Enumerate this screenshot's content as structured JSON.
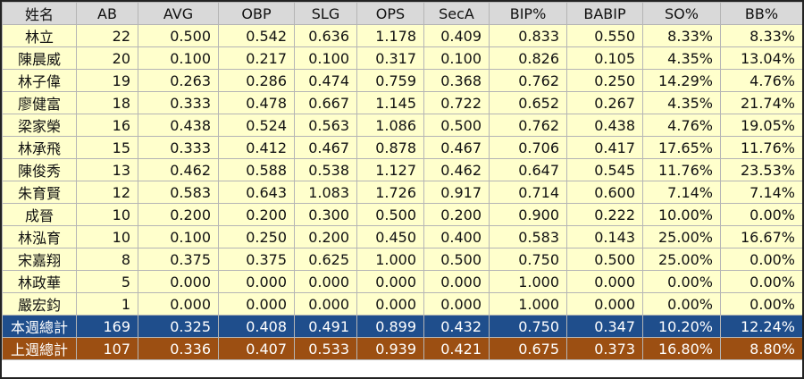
{
  "table": {
    "header": [
      "姓名",
      "AB",
      "AVG",
      "OBP",
      "SLG",
      "OPS",
      "SecA",
      "BIP%",
      "BABIP",
      "SO%",
      "BB%"
    ],
    "rows": [
      [
        "林立",
        "22",
        "0.500",
        "0.542",
        "0.636",
        "1.178",
        "0.409",
        "0.833",
        "0.550",
        "8.33%",
        "8.33%"
      ],
      [
        "陳晨威",
        "20",
        "0.100",
        "0.217",
        "0.100",
        "0.317",
        "0.100",
        "0.826",
        "0.105",
        "4.35%",
        "13.04%"
      ],
      [
        "林子偉",
        "19",
        "0.263",
        "0.286",
        "0.474",
        "0.759",
        "0.368",
        "0.762",
        "0.250",
        "14.29%",
        "4.76%"
      ],
      [
        "廖健富",
        "18",
        "0.333",
        "0.478",
        "0.667",
        "1.145",
        "0.722",
        "0.652",
        "0.267",
        "4.35%",
        "21.74%"
      ],
      [
        "梁家榮",
        "16",
        "0.438",
        "0.524",
        "0.563",
        "1.086",
        "0.500",
        "0.762",
        "0.438",
        "4.76%",
        "19.05%"
      ],
      [
        "林承飛",
        "15",
        "0.333",
        "0.412",
        "0.467",
        "0.878",
        "0.467",
        "0.706",
        "0.417",
        "17.65%",
        "11.76%"
      ],
      [
        "陳俊秀",
        "13",
        "0.462",
        "0.588",
        "0.538",
        "1.127",
        "0.462",
        "0.647",
        "0.545",
        "11.76%",
        "23.53%"
      ],
      [
        "朱育賢",
        "12",
        "0.583",
        "0.643",
        "1.083",
        "1.726",
        "0.917",
        "0.714",
        "0.600",
        "7.14%",
        "7.14%"
      ],
      [
        "成晉",
        "10",
        "0.200",
        "0.200",
        "0.300",
        "0.500",
        "0.200",
        "0.900",
        "0.222",
        "10.00%",
        "0.00%"
      ],
      [
        "林泓育",
        "10",
        "0.100",
        "0.250",
        "0.200",
        "0.450",
        "0.400",
        "0.583",
        "0.143",
        "25.00%",
        "16.67%"
      ],
      [
        "宋嘉翔",
        "8",
        "0.375",
        "0.375",
        "0.625",
        "1.000",
        "0.500",
        "0.750",
        "0.500",
        "25.00%",
        "0.00%"
      ],
      [
        "林政華",
        "5",
        "0.000",
        "0.000",
        "0.000",
        "0.000",
        "0.000",
        "1.000",
        "0.000",
        "0.00%",
        "0.00%"
      ],
      [
        "嚴宏鈞",
        "1",
        "0.000",
        "0.000",
        "0.000",
        "0.000",
        "0.000",
        "1.000",
        "0.000",
        "0.00%",
        "0.00%"
      ]
    ],
    "totals": [
      [
        "本週總計",
        "169",
        "0.325",
        "0.408",
        "0.491",
        "0.899",
        "0.432",
        "0.750",
        "0.347",
        "10.20%",
        "12.24%"
      ],
      [
        "上週總計",
        "107",
        "0.336",
        "0.407",
        "0.533",
        "0.939",
        "0.421",
        "0.675",
        "0.373",
        "16.80%",
        "8.80%"
      ]
    ]
  }
}
